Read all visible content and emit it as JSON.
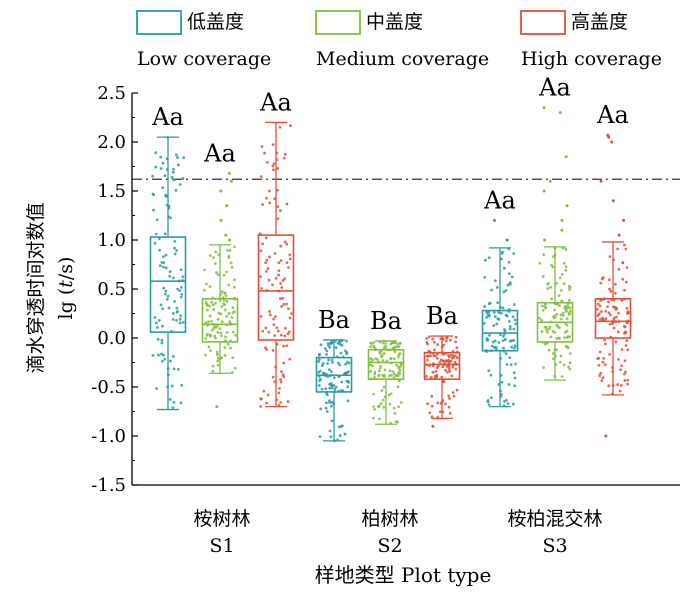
{
  "chart_data": {
    "type": "box",
    "xlabel": "样地类型 Plot type",
    "ylabel_cn": "滴水穿透时间对数值",
    "ylabel_en": "lg (t/s)",
    "ylim": [
      -1.5,
      2.5
    ],
    "yticks": [
      "2.5",
      "2.0",
      "1.5",
      "1.0",
      "0.5",
      "0.0",
      "-0.5",
      "-1.0",
      "-1.5"
    ],
    "reference_line": 1.62,
    "legend": [
      {
        "cn": "低盖度",
        "en": "Low coverage",
        "color": "#2a9aa3"
      },
      {
        "cn": "中盖度",
        "en": "Medium coverage",
        "color": "#7fbf3f"
      },
      {
        "cn": "高盖度",
        "en": "High coverage",
        "color": "#e0503a"
      }
    ],
    "groups": [
      {
        "cn": "桉树林",
        "code": "S1"
      },
      {
        "cn": "柏树林",
        "code": "S2"
      },
      {
        "cn": "桉柏混交林",
        "code": "S3"
      }
    ],
    "boxes": [
      {
        "group": "S1",
        "coverage": "Low coverage",
        "whisker_low": -0.73,
        "q1": 0.06,
        "median": 0.58,
        "q3": 1.03,
        "whisker_high": 2.05,
        "letters": "Aa",
        "outliers": []
      },
      {
        "group": "S1",
        "coverage": "Medium coverage",
        "whisker_low": -0.36,
        "q1": -0.04,
        "median": 0.14,
        "q3": 0.4,
        "whisker_high": 0.95,
        "letters": "Aa",
        "outliers": [
          1.0,
          1.05,
          1.2,
          1.35,
          1.5,
          1.6,
          1.68,
          -0.7
        ]
      },
      {
        "group": "S1",
        "coverage": "High coverage",
        "whisker_low": -0.7,
        "q1": -0.02,
        "median": 0.48,
        "q3": 1.05,
        "whisker_high": 2.2,
        "letters": "Aa",
        "outliers": []
      },
      {
        "group": "S2",
        "coverage": "Low coverage",
        "whisker_low": -1.05,
        "q1": -0.55,
        "median": -0.38,
        "q3": -0.2,
        "whisker_high": -0.02,
        "letters": "Ba",
        "outliers": []
      },
      {
        "group": "S2",
        "coverage": "Medium coverage",
        "whisker_low": -0.88,
        "q1": -0.42,
        "median": -0.25,
        "q3": -0.12,
        "whisker_high": -0.03,
        "letters": "Ba",
        "outliers": []
      },
      {
        "group": "S2",
        "coverage": "High coverage",
        "whisker_low": -0.82,
        "q1": -0.42,
        "median": -0.27,
        "q3": -0.15,
        "whisker_high": 0.02,
        "letters": "Ba",
        "outliers": [
          -0.9
        ]
      },
      {
        "group": "S3",
        "coverage": "Low coverage",
        "whisker_low": -0.7,
        "q1": -0.13,
        "median": 0.05,
        "q3": 0.28,
        "whisker_high": 0.92,
        "letters": "Aa",
        "outliers": [
          1.0,
          1.2
        ]
      },
      {
        "group": "S3",
        "coverage": "Medium coverage",
        "whisker_low": -0.43,
        "q1": -0.04,
        "median": 0.16,
        "q3": 0.36,
        "whisker_high": 0.93,
        "letters": "Aa",
        "outliers": [
          1.0,
          1.1,
          1.2,
          1.35,
          1.5,
          1.6,
          1.85,
          2.3,
          2.35
        ]
      },
      {
        "group": "S3",
        "coverage": "High coverage",
        "whisker_low": -0.58,
        "q1": 0.0,
        "median": 0.17,
        "q3": 0.4,
        "whisker_high": 0.98,
        "letters": "Aa",
        "outliers": [
          1.05,
          1.2,
          1.4,
          1.6,
          2.0,
          2.05,
          2.07,
          -1.0
        ]
      }
    ]
  }
}
